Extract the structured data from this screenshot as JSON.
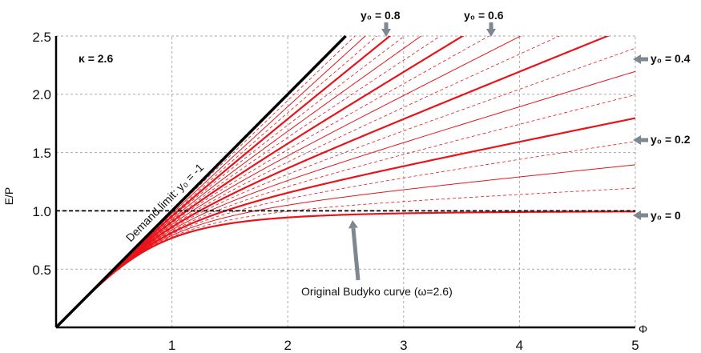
{
  "chart_data": {
    "type": "line",
    "title": "",
    "xlabel": "Φ",
    "ylabel": "E/P",
    "xlim": [
      0,
      5
    ],
    "ylim": [
      0,
      2.5
    ],
    "x_ticks": [
      "1",
      "2",
      "3",
      "4",
      "5"
    ],
    "y_ticks": [
      "0.5",
      "1.0",
      "1.5",
      "2.0",
      "2.5"
    ],
    "grid": true,
    "kappa": 2.6,
    "omega": 2.6,
    "colors": {
      "curve": "#e8141a",
      "limit": "#000000",
      "grid": "#aaaaaa",
      "arrow": "#7f8790"
    },
    "annotations": {
      "kappa_label": "κ = 2.6",
      "demand_limit": "Demand limit: y₀ = -1",
      "budyko": "Original Budyko curve (ω=2.6)"
    },
    "y0_labels": {
      "y08": "y₀ = 0.8",
      "y06": "y₀ = 0.6",
      "y04": "y₀ = 0.4",
      "y02": "y₀ = 0.2",
      "y00": "y₀ = 0"
    },
    "series": [
      {
        "name": "y₀ = 0",
        "y0": 0.0,
        "weight": "major"
      },
      {
        "y0": 0.05,
        "weight": "dashed"
      },
      {
        "y0": 0.1,
        "weight": "thin"
      },
      {
        "y0": 0.15,
        "weight": "dashed"
      },
      {
        "name": "y₀ = 0.2",
        "y0": 0.2,
        "weight": "major"
      },
      {
        "y0": 0.25,
        "weight": "dashed"
      },
      {
        "y0": 0.3,
        "weight": "thin"
      },
      {
        "y0": 0.35,
        "weight": "dashed"
      },
      {
        "name": "y₀ = 0.4",
        "y0": 0.4,
        "weight": "major"
      },
      {
        "y0": 0.45,
        "weight": "dashed"
      },
      {
        "y0": 0.5,
        "weight": "thin"
      },
      {
        "y0": 0.55,
        "weight": "dashed"
      },
      {
        "name": "y₀ = 0.6",
        "y0": 0.6,
        "weight": "major"
      },
      {
        "y0": 0.65,
        "weight": "dashed"
      },
      {
        "y0": 0.7,
        "weight": "thin"
      },
      {
        "y0": 0.75,
        "weight": "dashed"
      },
      {
        "name": "y₀ = 0.8",
        "y0": 0.8,
        "weight": "major"
      },
      {
        "y0": 0.85,
        "weight": "dashed"
      },
      {
        "y0": 0.9,
        "weight": "thin"
      },
      {
        "y0": 0.95,
        "weight": "dashed"
      }
    ]
  }
}
